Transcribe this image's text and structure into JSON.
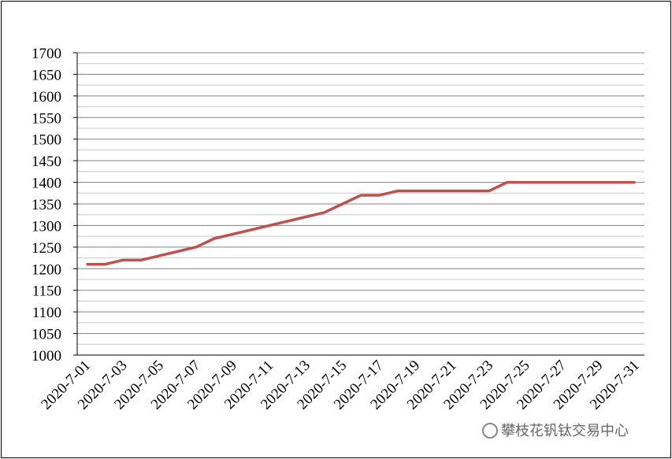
{
  "chart_data": {
    "type": "line",
    "categories": [
      "2020-7-01",
      null,
      "2020-7-03",
      null,
      "2020-7-05",
      null,
      "2020-7-07",
      null,
      "2020-7-09",
      null,
      "2020-7-11",
      null,
      "2020-7-13",
      null,
      "2020-7-15",
      null,
      "2020-7-17",
      null,
      "2020-7-19",
      null,
      "2020-7-21",
      null,
      "2020-7-23",
      null,
      "2020-7-25",
      null,
      "2020-7-27",
      null,
      "2020-7-29",
      null,
      "2020-7-31"
    ],
    "values": [
      1210,
      1210,
      1220,
      1220,
      1230,
      1240,
      1250,
      1270,
      1280,
      1290,
      1300,
      1310,
      1320,
      1330,
      1350,
      1370,
      1370,
      1380,
      1380,
      1380,
      1380,
      1380,
      1380,
      1400,
      1400,
      1400,
      1400,
      1400,
      1400,
      1400,
      1400
    ],
    "color": "#c0504d",
    "ylim": [
      1000,
      1700
    ],
    "yticks": [
      1000,
      1050,
      1100,
      1150,
      1200,
      1250,
      1300,
      1350,
      1400,
      1450,
      1500,
      1550,
      1600,
      1650,
      1700
    ],
    "grid": true,
    "minor_grid": true,
    "annotation": "攀枝花钒钛交易中心"
  }
}
